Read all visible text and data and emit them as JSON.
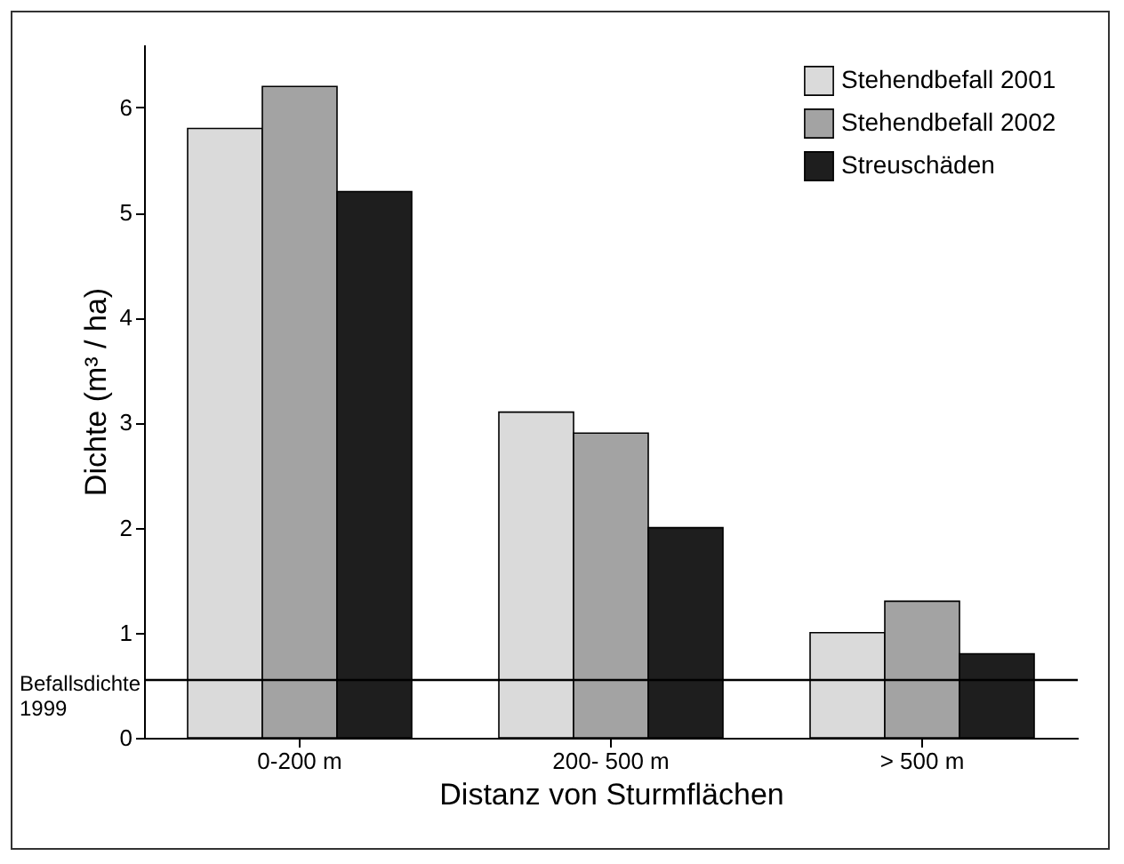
{
  "chart_data": {
    "type": "bar",
    "xlabel": "Distanz von Sturmflächen",
    "ylabel": "Dichte (m³ / ha)",
    "categories": [
      "0-200 m",
      "200- 500 m",
      "> 500 m"
    ],
    "series": [
      {
        "name": "Stehendbefall 2001",
        "color": "#dadada",
        "values": [
          5.8,
          3.1,
          1.0
        ]
      },
      {
        "name": "Stehendbefall 2002",
        "color": "#a3a3a3",
        "values": [
          6.2,
          2.9,
          1.3
        ]
      },
      {
        "name": "Streuschäden",
        "color": "#1e1e1e",
        "values": [
          5.2,
          2.0,
          0.8
        ]
      }
    ],
    "ylim": [
      0,
      6.6
    ],
    "yticks": [
      0,
      1,
      2,
      3,
      4,
      5,
      6
    ],
    "grid": false,
    "legend": "top right",
    "ref_lines": [
      {
        "axis": "y",
        "value": 0.55,
        "label": "Befallsdichte\n1999",
        "color": "#000000"
      }
    ]
  }
}
